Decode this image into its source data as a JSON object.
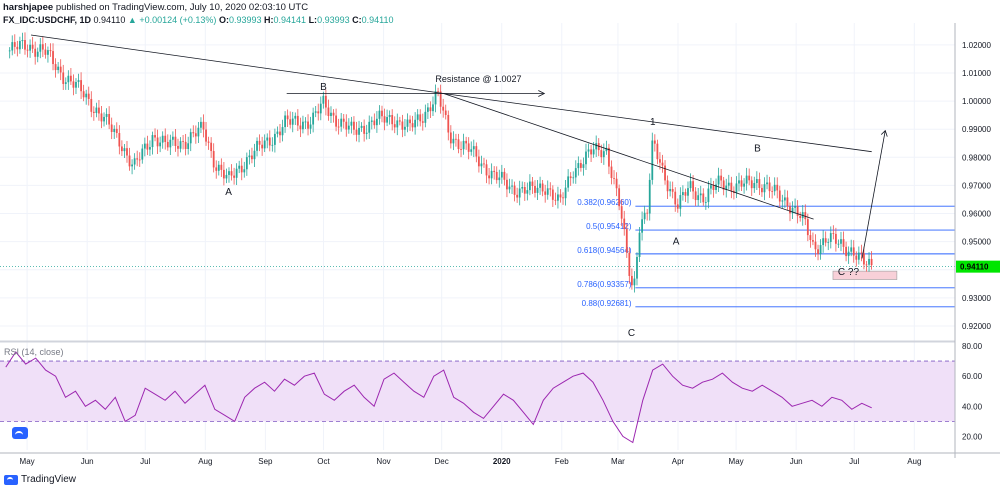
{
  "header": {
    "author": "harshjapee",
    "published": "published on TradingView.com, July 10, 2020 02:03:10 UTC",
    "symbol": "FX_IDC:USDCHF, 1D",
    "last": "0.94110",
    "change_arrow": "▲",
    "change": "+0.00124 (+0.13%)",
    "o_label": "O:",
    "o": "0.93993",
    "h_label": "H:",
    "h": "0.94141",
    "l_label": "L:",
    "l": "0.93993",
    "c_label": "C:",
    "c": "0.94110"
  },
  "footer": {
    "brand": "TradingView",
    "logo_icon": "tradingview-logo-icon"
  },
  "colors": {
    "up": "#26a69a",
    "down": "#ef5350",
    "trendline": "#131722",
    "fib": "#2962ff",
    "price_line": "#26a69a",
    "price_tag": "#00e600",
    "rsi_line": "#9c27b0",
    "rsi_band": "#f0e0f8",
    "rsi_level": "#7e57c2",
    "box": "#f8d0d8",
    "grid": "#f0f3fa"
  },
  "chart_data": [
    {
      "type": "candlestick",
      "series_name": "FX_IDC:USDCHF, 1D",
      "x_ticks": [
        "May",
        "Jun",
        "Jul",
        "Aug",
        "Sep",
        "Oct",
        "Nov",
        "Dec",
        "2020",
        "Feb",
        "Mar",
        "Apr",
        "May",
        "Jun",
        "Jul",
        "Aug"
      ],
      "y_ticks": [
        "1.02000",
        "1.01000",
        "1.00000",
        "0.99000",
        "0.98000",
        "0.97000",
        "0.96000",
        "0.95000",
        "0.94000",
        "0.93000",
        "0.92000"
      ],
      "ylim": [
        0.915,
        1.026
      ],
      "last_price": "0.94110",
      "approx_close_path": [
        [
          "2019-04-22",
          1.018
        ],
        [
          "2019-05-01",
          1.02
        ],
        [
          "2019-05-10",
          1.0175
        ],
        [
          "2019-05-20",
          1.009
        ],
        [
          "2019-05-31",
          1.002
        ],
        [
          "2019-06-10",
          0.993
        ],
        [
          "2019-06-18",
          0.986
        ],
        [
          "2019-06-25",
          0.976
        ],
        [
          "2019-07-05",
          0.988
        ],
        [
          "2019-07-12",
          0.984
        ],
        [
          "2019-07-22",
          0.986
        ],
        [
          "2019-07-31",
          0.99
        ],
        [
          "2019-08-06",
          0.978
        ],
        [
          "2019-08-13",
          0.9715
        ],
        [
          "2019-08-23",
          0.98
        ],
        [
          "2019-09-03",
          0.986
        ],
        [
          "2019-09-11",
          0.992
        ],
        [
          "2019-09-25",
          0.993
        ],
        [
          "2019-10-01",
          0.999
        ],
        [
          "2019-10-07",
          0.994
        ],
        [
          "2019-10-16",
          0.989
        ],
        [
          "2019-10-28",
          0.993
        ],
        [
          "2019-11-06",
          0.994
        ],
        [
          "2019-11-14",
          0.99
        ],
        [
          "2019-11-21",
          0.995
        ],
        [
          "2019-11-29",
          1.002
        ],
        [
          "2019-12-05",
          0.988
        ],
        [
          "2019-12-16",
          0.982
        ],
        [
          "2019-12-27",
          0.974
        ],
        [
          "2020-01-06",
          0.969
        ],
        [
          "2020-01-17",
          0.968
        ],
        [
          "2020-01-24",
          0.97
        ],
        [
          "2020-01-31",
          0.963
        ],
        [
          "2020-02-07",
          0.976
        ],
        [
          "2020-02-17",
          0.982
        ],
        [
          "2020-02-24",
          0.983
        ],
        [
          "2020-03-02",
          0.962
        ],
        [
          "2020-03-06",
          0.943
        ],
        [
          "2020-03-09",
          0.932
        ],
        [
          "2020-03-12",
          0.956
        ],
        [
          "2020-03-16",
          0.96
        ],
        [
          "2020-03-19",
          0.985
        ],
        [
          "2020-03-25",
          0.974
        ],
        [
          "2020-04-01",
          0.962
        ],
        [
          "2020-04-07",
          0.97
        ],
        [
          "2020-04-15",
          0.965
        ],
        [
          "2020-04-23",
          0.972
        ],
        [
          "2020-05-01",
          0.969
        ],
        [
          "2020-05-11",
          0.972
        ],
        [
          "2020-05-19",
          0.968
        ],
        [
          "2020-05-28",
          0.964
        ],
        [
          "2020-06-05",
          0.957
        ],
        [
          "2020-06-10",
          0.948
        ],
        [
          "2020-06-17",
          0.951
        ],
        [
          "2020-06-24",
          0.949
        ],
        [
          "2020-06-30",
          0.947
        ],
        [
          "2020-07-06",
          0.942
        ],
        [
          "2020-07-10",
          0.9411
        ]
      ],
      "fib_levels": [
        {
          "label": "0.382(0.96260)",
          "price": 0.9626
        },
        {
          "label": "0.5(0.95412)",
          "price": 0.95412
        },
        {
          "label": "0.618(0.94564)",
          "price": 0.94564
        },
        {
          "label": "0.786(0.93357)",
          "price": 0.93357
        },
        {
          "label": "0.88(0.92681)",
          "price": 0.92681
        }
      ],
      "annotations": [
        {
          "text": "B",
          "date": "2019-10-01",
          "price": 1.004
        },
        {
          "text": "A",
          "date": "2019-08-13",
          "price": 0.9665
        },
        {
          "text": "Resistance @ 1.0027",
          "date": "2019-12-20",
          "price": 1.0067
        },
        {
          "text": "C",
          "date": "2020-03-08",
          "price": 0.9165
        },
        {
          "text": "1",
          "date": "2020-03-19",
          "price": 0.9915
        },
        {
          "text": "A",
          "date": "2020-03-31",
          "price": 0.949
        },
        {
          "text": "B",
          "date": "2020-05-12",
          "price": 0.982
        },
        {
          "text": "C ??",
          "date": "2020-06-28",
          "price": 0.9382
        }
      ],
      "resistance_level": 1.0027
    },
    {
      "type": "line",
      "series_name": "RSI (14, close)",
      "y_ticks": [
        "80.00",
        "60.00",
        "40.00",
        "20.00"
      ],
      "ylim": [
        11,
        82
      ],
      "levels": [
        70,
        30
      ],
      "approx_values": [
        66,
        76,
        68,
        72,
        64,
        60,
        46,
        50,
        40,
        44,
        38,
        46,
        30,
        34,
        52,
        48,
        44,
        50,
        42,
        48,
        54,
        38,
        34,
        30,
        46,
        52,
        56,
        50,
        58,
        54,
        60,
        62,
        48,
        44,
        50,
        54,
        46,
        40,
        58,
        62,
        56,
        50,
        46,
        60,
        64,
        46,
        42,
        36,
        32,
        40,
        48,
        44,
        36,
        28,
        44,
        52,
        56,
        60,
        62,
        56,
        44,
        30,
        20,
        16,
        44,
        64,
        68,
        60,
        54,
        52,
        56,
        58,
        62,
        56,
        52,
        50,
        54,
        50,
        46,
        40,
        42,
        44,
        40,
        46,
        44,
        38,
        42,
        39
      ]
    }
  ]
}
